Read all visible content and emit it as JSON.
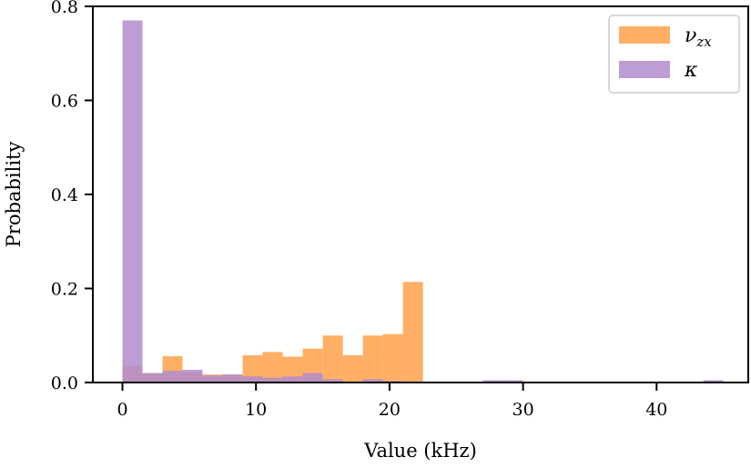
{
  "chart_data": {
    "type": "bar",
    "subtype": "overlaid_histogram",
    "title": "",
    "xlabel": "Value (kHz)",
    "ylabel": "Probability",
    "xlim": [
      -2.2,
      46.9
    ],
    "ylim": [
      0,
      0.8
    ],
    "xticks": [
      0,
      10,
      20,
      30,
      40
    ],
    "xtick_labels": [
      "0",
      "10",
      "20",
      "30",
      "40"
    ],
    "yticks": [
      0.0,
      0.2,
      0.4,
      0.6,
      0.8
    ],
    "ytick_labels": [
      "0.0",
      "0.2",
      "0.4",
      "0.6",
      "0.8"
    ],
    "grid": false,
    "legend_position": "upper right",
    "bin_width": 1.5,
    "series": [
      {
        "name": "ν_zx",
        "legend_main": "ν",
        "legend_sub": "zx",
        "color": "#FFA14A",
        "opacity": 0.85,
        "bins": [
          {
            "start": 0.0,
            "value": 0.035
          },
          {
            "start": 1.5,
            "value": 0.02
          },
          {
            "start": 3.0,
            "value": 0.056
          },
          {
            "start": 4.5,
            "value": 0.022
          },
          {
            "start": 6.0,
            "value": 0.017
          },
          {
            "start": 7.5,
            "value": 0.017
          },
          {
            "start": 9.0,
            "value": 0.058
          },
          {
            "start": 10.5,
            "value": 0.065
          },
          {
            "start": 12.0,
            "value": 0.055
          },
          {
            "start": 13.5,
            "value": 0.072
          },
          {
            "start": 15.0,
            "value": 0.1
          },
          {
            "start": 16.5,
            "value": 0.058
          },
          {
            "start": 18.0,
            "value": 0.1
          },
          {
            "start": 19.5,
            "value": 0.103
          },
          {
            "start": 21.0,
            "value": 0.214
          }
        ]
      },
      {
        "name": "κ",
        "legend_main": "κ",
        "legend_sub": "",
        "color": "#B08CCE",
        "opacity": 0.85,
        "bins": [
          {
            "start": 0.0,
            "value": 0.77
          },
          {
            "start": 1.5,
            "value": 0.02
          },
          {
            "start": 3.0,
            "value": 0.025
          },
          {
            "start": 4.5,
            "value": 0.027
          },
          {
            "start": 6.0,
            "value": 0.015
          },
          {
            "start": 7.5,
            "value": 0.017
          },
          {
            "start": 9.0,
            "value": 0.013
          },
          {
            "start": 10.5,
            "value": 0.01
          },
          {
            "start": 12.0,
            "value": 0.013
          },
          {
            "start": 13.5,
            "value": 0.02
          },
          {
            "start": 15.0,
            "value": 0.007
          },
          {
            "start": 16.5,
            "value": 0.002
          },
          {
            "start": 18.0,
            "value": 0.007
          },
          {
            "start": 19.5,
            "value": 0.003
          },
          {
            "start": 21.0,
            "value": 0.002
          },
          {
            "start": 27.0,
            "value": 0.005
          },
          {
            "start": 28.5,
            "value": 0.005
          },
          {
            "start": 30.0,
            "value": 0.002
          },
          {
            "start": 37.5,
            "value": 0.001
          },
          {
            "start": 40.5,
            "value": 0.001
          },
          {
            "start": 43.5,
            "value": 0.005
          }
        ]
      }
    ]
  }
}
